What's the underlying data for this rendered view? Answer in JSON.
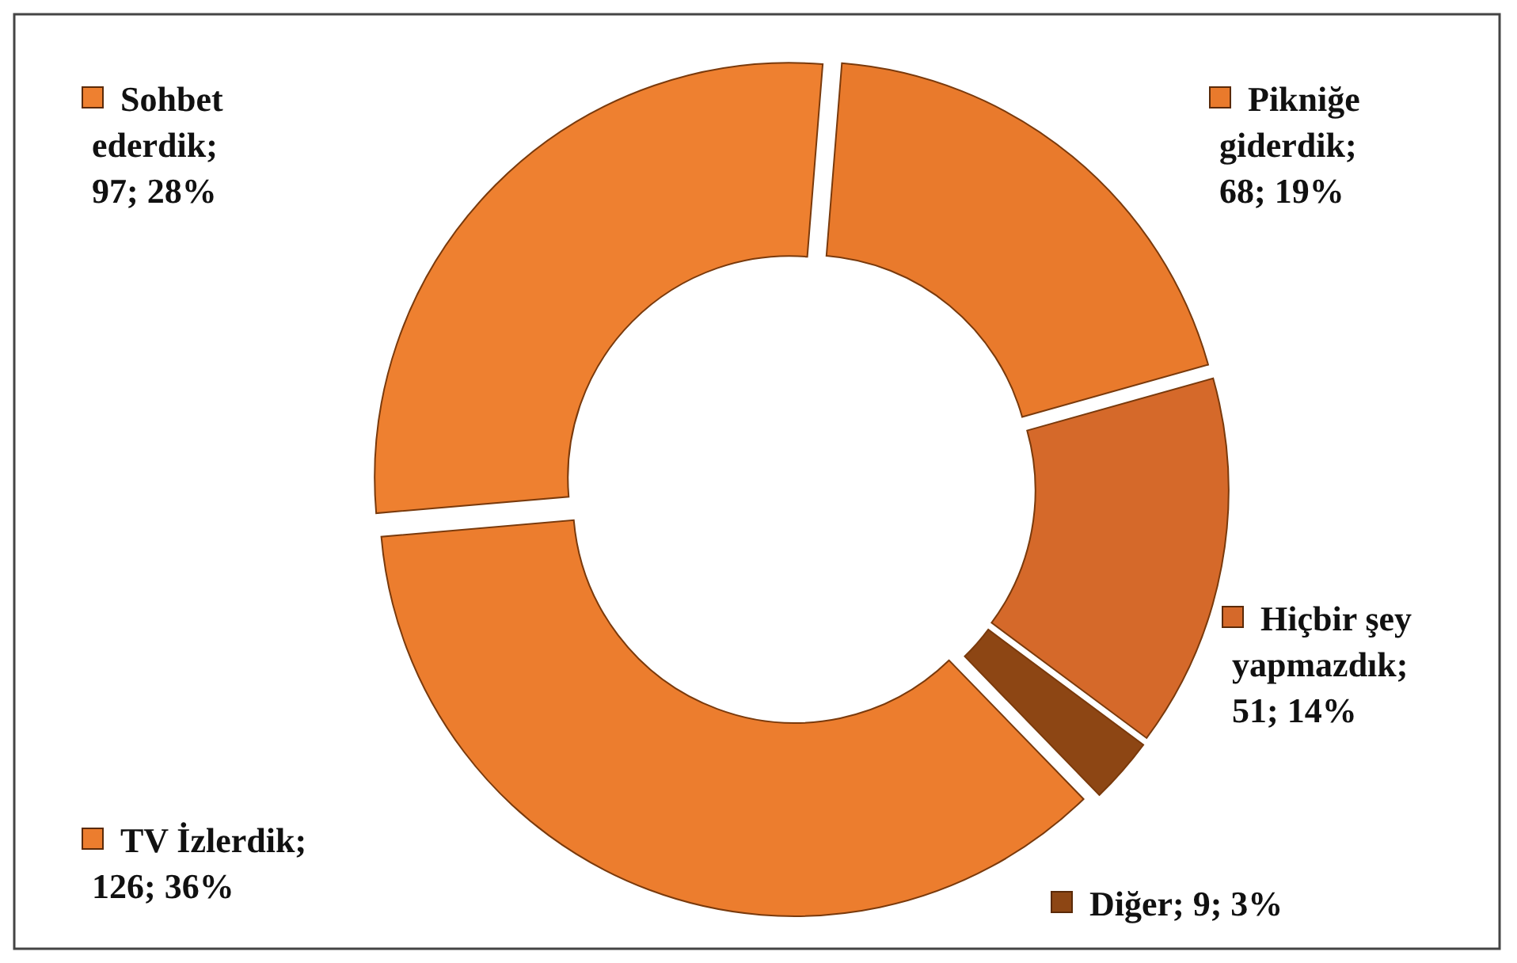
{
  "chart_data": {
    "type": "donut",
    "categories": [
      "Pikniğe giderdik",
      "Hiçbir şey yapmazdık",
      "Diğer",
      "TV İzlerdik",
      "Sohbet ederdik"
    ],
    "values": [
      68,
      51,
      9,
      126,
      97
    ],
    "colors": [
      "#e97a2c",
      "#d5692a",
      "#8d4614",
      "#ec7d2e",
      "#ee8030"
    ],
    "value_labels": [
      "; 68; 19%",
      "; 51; 14%",
      "; 9; 3%",
      "; 126; 36%",
      "; 97; 28%"
    ],
    "legend": true
  }
}
